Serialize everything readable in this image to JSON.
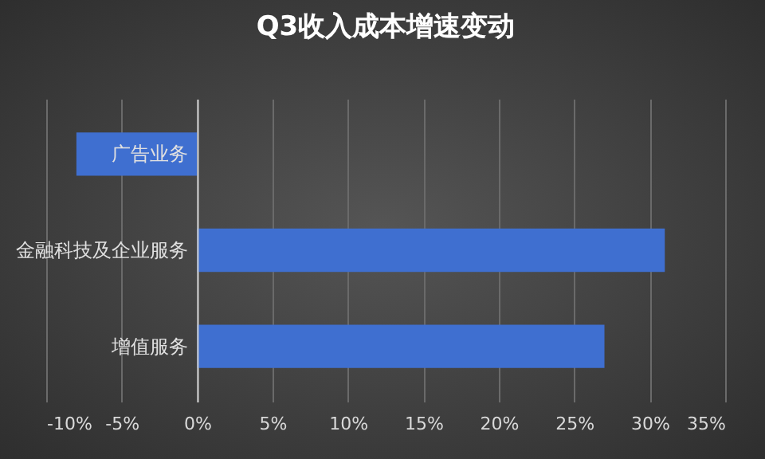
{
  "chart_data": {
    "type": "bar",
    "orientation": "horizontal",
    "title": "Q3收入成本增速变动",
    "categories": [
      "广告业务",
      "金融科技及企业服务",
      "增值服务"
    ],
    "values": [
      -8,
      31,
      27
    ],
    "color": "#3f6fd0",
    "xlim": [
      -10,
      35
    ],
    "xticks": [
      {
        "value": -10,
        "label": "-10%"
      },
      {
        "value": -5,
        "label": "-5%"
      },
      {
        "value": 0,
        "label": "0%"
      },
      {
        "value": 5,
        "label": "5%"
      },
      {
        "value": 10,
        "label": "10%"
      },
      {
        "value": 15,
        "label": "15%"
      },
      {
        "value": 20,
        "label": "20%"
      },
      {
        "value": 25,
        "label": "25%"
      },
      {
        "value": 30,
        "label": "30%"
      },
      {
        "value": 35,
        "label": "35%"
      }
    ],
    "grid": "x"
  }
}
